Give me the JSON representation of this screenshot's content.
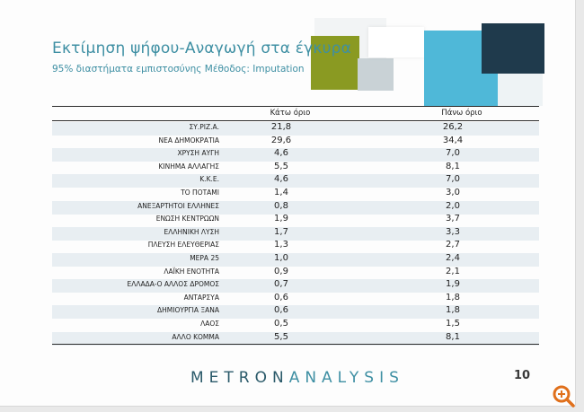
{
  "title": "Εκτίμηση ψήφου-Αναγωγή στα έγκυρα",
  "subtitle": "95% διαστήματα εμπιστοσύνης Μέθοδος: Imputation",
  "columns": {
    "lower": "Κάτω όριο",
    "upper": "Πάνω όριο"
  },
  "rows": [
    {
      "party": "ΣΥ.ΡΙΖ.Α.",
      "low": "21,8",
      "high": "26,2"
    },
    {
      "party": "ΝΕΑ ΔΗΜΟΚΡΑΤΙΑ",
      "low": "29,6",
      "high": "34,4"
    },
    {
      "party": "ΧΡΥΣΗ ΑΥΓΗ",
      "low": "4,6",
      "high": "7,0"
    },
    {
      "party": "ΚΙΝΗΜΑ ΑΛΛΑΓΗΣ",
      "low": "5,5",
      "high": "8,1"
    },
    {
      "party": "Κ.Κ.Ε.",
      "low": "4,6",
      "high": "7,0"
    },
    {
      "party": "ΤΟ ΠΟΤΑΜΙ",
      "low": "1,4",
      "high": "3,0"
    },
    {
      "party": "ΑΝΕΞΑΡΤΗΤΟΙ ΕΛΛΗΝΕΣ",
      "low": "0,8",
      "high": "2,0"
    },
    {
      "party": "ΕΝΩΣΗ ΚΕΝΤΡΩΩΝ",
      "low": "1,9",
      "high": "3,7"
    },
    {
      "party": "ΕΛΛΗΝΙΚΗ ΛΥΣΗ",
      "low": "1,7",
      "high": "3,3"
    },
    {
      "party": "ΠΛΕΥΣΗ ΕΛΕΥΘΕΡΙΑΣ",
      "low": "1,3",
      "high": "2,7"
    },
    {
      "party": "ΜΕΡΑ 25",
      "low": "1,0",
      "high": "2,4"
    },
    {
      "party": "ΛΑΪΚΗ ΕΝΟΤΗΤΑ",
      "low": "0,9",
      "high": "2,1"
    },
    {
      "party": "ΕΛΛΑΔΑ-Ο ΑΛΛΟΣ ΔΡΟΜΟΣ",
      "low": "0,7",
      "high": "1,9"
    },
    {
      "party": "ΑΝΤΑΡΣΥΑ",
      "low": "0,6",
      "high": "1,8"
    },
    {
      "party": "ΔΗΜΙΟΥΡΓΙΑ ΞΑΝΑ",
      "low": "0,6",
      "high": "1,8"
    },
    {
      "party": "ΛΑΟΣ",
      "low": "0,5",
      "high": "1,5"
    },
    {
      "party": "ΑΛΛΟ ΚΟΜΜΑ",
      "low": "5,5",
      "high": "8,1"
    }
  ],
  "footer": {
    "logo_part1": "METRON",
    "logo_part2": "ANALYSIS",
    "page_number": "10"
  },
  "colors": {
    "accent": "#3e8fa3",
    "olive": "#8a9a22",
    "cyan": "#4fb8d8",
    "navy": "#1f3a4c",
    "row_shade": "#e8eef2"
  }
}
